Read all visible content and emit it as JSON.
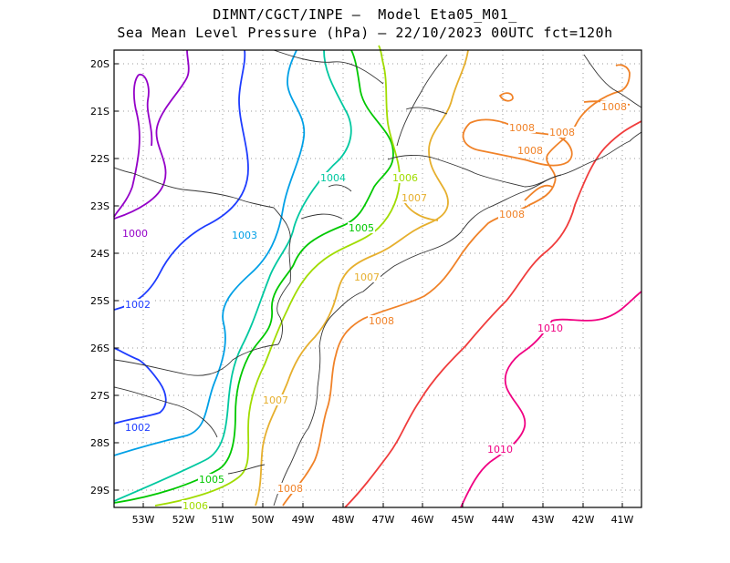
{
  "title_line1": "DIMNT/CGCT/INPE –  Model Eta05_M01_",
  "title_line2": "Sea Mean Level Pressure (hPa) – 22/10/2023 00UTC fct=120h",
  "lat_labels": [
    "20S",
    "21S",
    "22S",
    "23S",
    "24S",
    "25S",
    "26S",
    "27S",
    "28S",
    "29S"
  ],
  "lon_labels": [
    "53W",
    "52W",
    "51W",
    "50W",
    "49W",
    "48W",
    "47W",
    "46W",
    "45W",
    "44W",
    "43W",
    "42W",
    "41W"
  ],
  "contour_labels": [
    {
      "text": "1000",
      "color": "#9400c8"
    },
    {
      "text": "1002",
      "color": "#1e3cff"
    },
    {
      "text": "1002",
      "color": "#1e3cff"
    },
    {
      "text": "1003",
      "color": "#00a0e6"
    },
    {
      "text": "1004",
      "color": "#00c8a0"
    },
    {
      "text": "1005",
      "color": "#00c800"
    },
    {
      "text": "1005",
      "color": "#00c800"
    },
    {
      "text": "1006",
      "color": "#a0dc00"
    },
    {
      "text": "1006",
      "color": "#a0dc00"
    },
    {
      "text": "1007",
      "color": "#e6af2d"
    },
    {
      "text": "1007",
      "color": "#e6af2d"
    },
    {
      "text": "1007",
      "color": "#e6af2d"
    },
    {
      "text": "1008",
      "color": "#f08228"
    },
    {
      "text": "1008",
      "color": "#f08228"
    },
    {
      "text": "1008",
      "color": "#f08228"
    },
    {
      "text": "1008",
      "color": "#f08228"
    },
    {
      "text": "1008",
      "color": "#f08228"
    },
    {
      "text": "1008",
      "color": "#f08228"
    },
    {
      "text": "1008",
      "color": "#f08228"
    },
    {
      "text": "1010",
      "color": "#f00082"
    },
    {
      "text": "1010",
      "color": "#f00082"
    }
  ]
}
